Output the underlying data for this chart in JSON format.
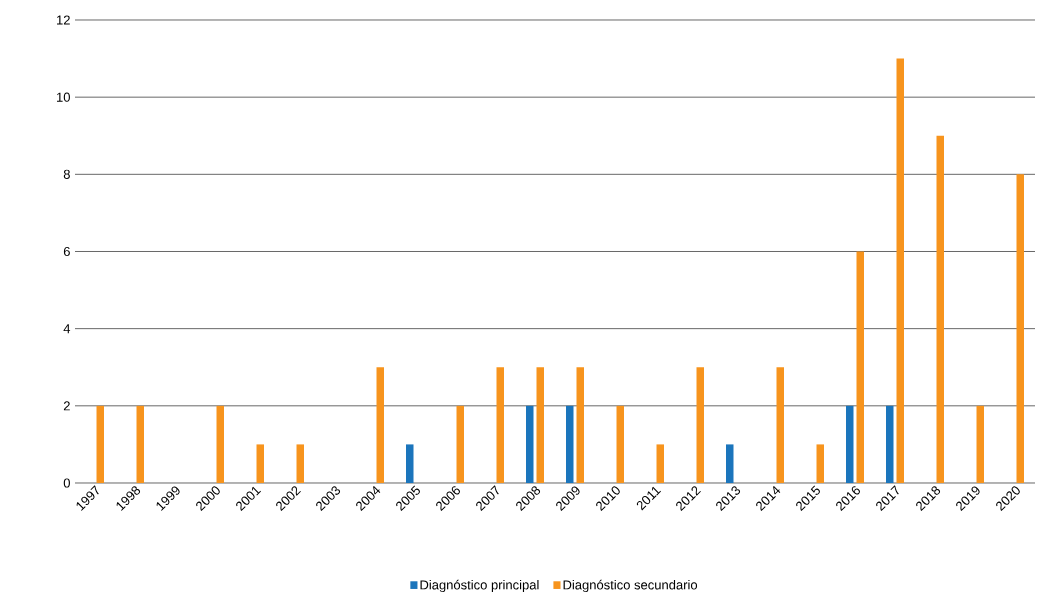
{
  "chart_data": {
    "type": "bar",
    "categories": [
      "1997",
      "1998",
      "1999",
      "2000",
      "2001",
      "2002",
      "2003",
      "2004",
      "2005",
      "2006",
      "2007",
      "2008",
      "2009",
      "2010",
      "2011",
      "2012",
      "2013",
      "2014",
      "2015",
      "2016",
      "2017",
      "2018",
      "2019",
      "2020"
    ],
    "series": [
      {
        "name": "Diagnóstico principal",
        "color": "#1b75bc",
        "values": [
          0,
          0,
          0,
          0,
          0,
          0,
          0,
          0,
          1,
          0,
          0,
          2,
          2,
          0,
          0,
          0,
          1,
          0,
          0,
          2,
          2,
          0,
          0,
          0
        ]
      },
      {
        "name": "Diagnóstico secundario",
        "color": "#f7941d",
        "values": [
          2,
          2,
          0,
          2,
          1,
          1,
          0,
          3,
          0,
          2,
          3,
          3,
          3,
          2,
          1,
          3,
          0,
          3,
          1,
          6,
          11,
          9,
          2,
          8
        ]
      }
    ],
    "ylim": [
      0,
      12
    ],
    "yticks": [
      0,
      2,
      4,
      6,
      8,
      10,
      12
    ],
    "grid": "y",
    "legend": "bottom"
  }
}
